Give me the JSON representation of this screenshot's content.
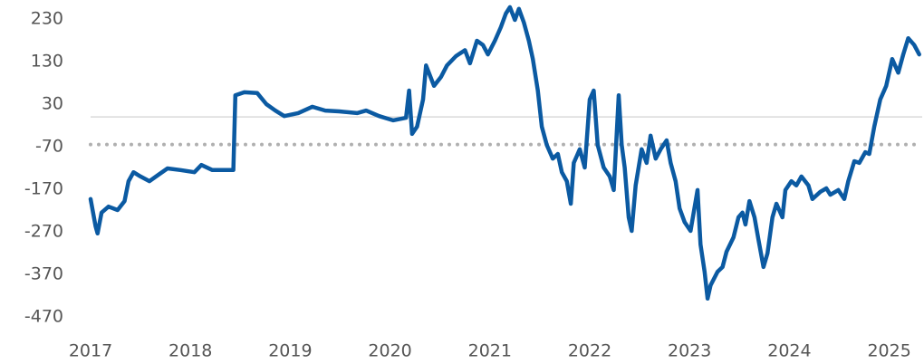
{
  "chart_data": {
    "type": "line",
    "xlim": [
      2017,
      2025.33
    ],
    "xticks": [
      2017,
      2018,
      2019,
      2020,
      2021,
      2022,
      2023,
      2024,
      2025
    ],
    "ylim": [
      -500,
      260
    ],
    "yticks": [
      230,
      130,
      30,
      -70,
      -170,
      -270,
      -370,
      -470
    ],
    "hlines": [
      {
        "value": 0,
        "style": "solid",
        "color": "#d9d9d9"
      },
      {
        "value": -65,
        "style": "dotted",
        "color": "#b0b0b0"
      }
    ],
    "series": [
      {
        "color": "#0b5aa2",
        "x": [
          2017.0,
          2017.05,
          2017.07,
          2017.11,
          2017.18,
          2017.27,
          2017.34,
          2017.38,
          2017.43,
          2017.5,
          2017.59,
          2017.68,
          2017.77,
          2017.9,
          2018.04,
          2018.11,
          2018.22,
          2018.43,
          2018.45,
          2018.54,
          2018.67,
          2018.76,
          2018.85,
          2018.94,
          2019.08,
          2019.22,
          2019.35,
          2019.49,
          2019.67,
          2019.76,
          2019.89,
          2020.03,
          2020.16,
          2020.19,
          2020.22,
          2020.27,
          2020.33,
          2020.36,
          2020.44,
          2020.51,
          2020.57,
          2020.66,
          2020.75,
          2020.8,
          2020.87,
          2020.93,
          2020.98,
          2021.05,
          2021.11,
          2021.16,
          2021.2,
          2021.25,
          2021.29,
          2021.34,
          2021.39,
          2021.43,
          2021.48,
          2021.52,
          2021.57,
          2021.63,
          2021.68,
          2021.72,
          2021.77,
          2021.81,
          2021.84,
          2021.9,
          2021.95,
          2022.0,
          2022.04,
          2022.08,
          2022.14,
          2022.2,
          2022.24,
          2022.29,
          2022.32,
          2022.35,
          2022.39,
          2022.42,
          2022.46,
          2022.52,
          2022.57,
          2022.61,
          2022.66,
          2022.71,
          2022.77,
          2022.81,
          2022.86,
          2022.9,
          2022.95,
          2023.01,
          2023.08,
          2023.11,
          2023.15,
          2023.18,
          2023.21,
          2023.28,
          2023.33,
          2023.37,
          2023.44,
          2023.49,
          2023.53,
          2023.56,
          2023.6,
          2023.65,
          2023.69,
          2023.74,
          2023.78,
          2023.83,
          2023.87,
          2023.93,
          2023.96,
          2024.02,
          2024.07,
          2024.12,
          2024.19,
          2024.23,
          2024.31,
          2024.37,
          2024.41,
          2024.49,
          2024.55,
          2024.59,
          2024.65,
          2024.7,
          2024.76,
          2024.8,
          2024.85,
          2024.91,
          2024.97,
          2025.03,
          2025.09,
          2025.14,
          2025.19,
          2025.25,
          2025.3
        ],
        "values": [
          -193,
          -257,
          -274,
          -225,
          -211,
          -219,
          -198,
          -151,
          -130,
          -140,
          -151,
          -136,
          -121,
          -125,
          -130,
          -113,
          -125,
          -125,
          51,
          58,
          56,
          30,
          15,
          2,
          9,
          24,
          15,
          13,
          9,
          15,
          2,
          -8,
          -2,
          62,
          -40,
          -23,
          41,
          121,
          73,
          94,
          121,
          143,
          157,
          126,
          179,
          169,
          147,
          179,
          211,
          243,
          258,
          228,
          254,
          222,
          179,
          136,
          62,
          -23,
          -66,
          -98,
          -87,
          -130,
          -151,
          -204,
          -108,
          -76,
          -119,
          41,
          62,
          -66,
          -119,
          -140,
          -172,
          51,
          -66,
          -119,
          -236,
          -268,
          -161,
          -76,
          -108,
          -44,
          -98,
          -76,
          -55,
          -108,
          -151,
          -215,
          -247,
          -268,
          -172,
          -300,
          -364,
          -427,
          -396,
          -364,
          -353,
          -317,
          -283,
          -236,
          -225,
          -253,
          -198,
          -236,
          -289,
          -353,
          -321,
          -236,
          -204,
          -236,
          -172,
          -151,
          -161,
          -140,
          -161,
          -193,
          -176,
          -168,
          -183,
          -172,
          -193,
          -151,
          -104,
          -108,
          -83,
          -87,
          -23,
          41,
          73,
          136,
          104,
          147,
          185,
          169,
          147
        ]
      }
    ]
  }
}
